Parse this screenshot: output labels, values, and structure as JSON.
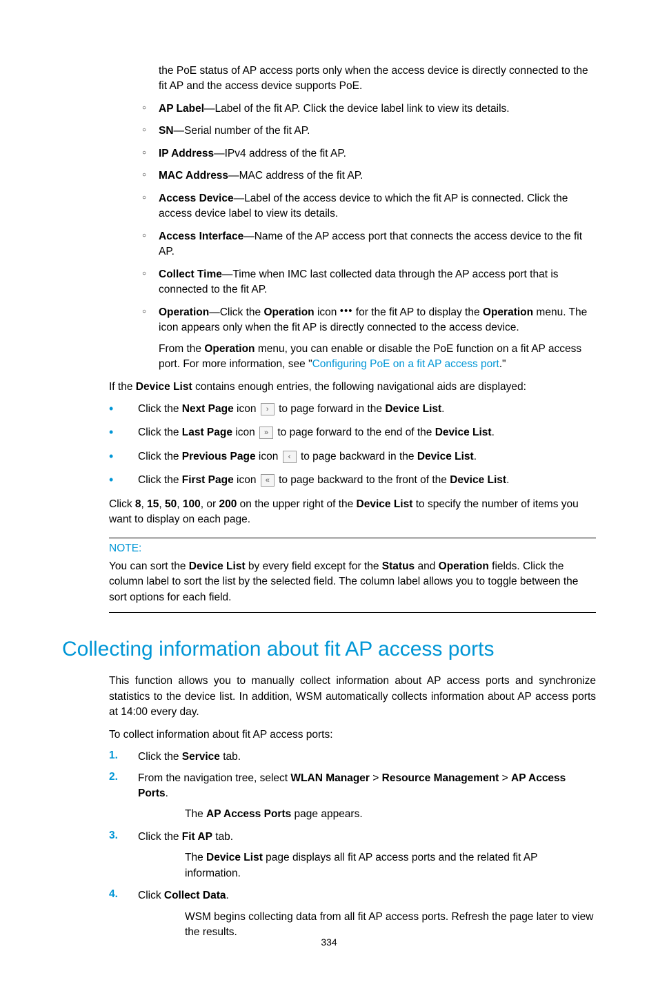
{
  "page_number": "334",
  "intro_continuation": "the PoE status of AP access ports only when the access device is directly connected to the fit AP and the access device supports PoE.",
  "sub_items": [
    {
      "term": "AP Label",
      "desc": "—Label of the fit AP. Click the device label link to view its details."
    },
    {
      "term": "SN",
      "desc": "—Serial number of the fit AP."
    },
    {
      "term": "IP Address",
      "desc": "—IPv4 address of the fit AP."
    },
    {
      "term": "MAC Address",
      "desc": "—MAC address of the fit AP."
    },
    {
      "term": "Access Device",
      "desc": "—Label of the access device to which the fit AP is connected. Click the access device label to view its details."
    },
    {
      "term": "Access Interface",
      "desc": "—Name of the AP access port that connects the access device to the fit AP."
    },
    {
      "term": "Collect Time",
      "desc": "—Time when IMC last collected data through the AP access port that is connected to the fit AP."
    }
  ],
  "operation": {
    "term": "Operation",
    "part1": "—Click the ",
    "icon_label": "Operation",
    "part2": " icon ",
    "part3": " for the fit AP to display the ",
    "menu_label": "Operation",
    "part4": " menu. The icon appears only when the fit AP is directly connected to the access device.",
    "para2_a": "From the ",
    "para2_b": " menu, you can enable or disable the PoE function on a fit AP access port. For more information, see \"",
    "link": "Configuring PoE on a fit AP access port",
    "para2_c": ".\""
  },
  "nav_intro_a": "If the ",
  "nav_intro_b": "Device List",
  "nav_intro_c": " contains enough entries, the following navigational aids are displayed:",
  "nav_items": [
    {
      "pre": "Click the ",
      "bold": "Next Page",
      "mid": " icon ",
      "glyph": "›",
      "post_a": " to page forward in the ",
      "target": "Device List",
      "post_b": "."
    },
    {
      "pre": "Click the ",
      "bold": "Last Page",
      "mid": " icon ",
      "glyph": "»",
      "post_a": " to page forward to the end of the ",
      "target": "Device List",
      "post_b": "."
    },
    {
      "pre": "Click the ",
      "bold": "Previous Page",
      "mid": " icon ",
      "glyph": "‹",
      "post_a": " to page backward in the ",
      "target": "Device List",
      "post_b": "."
    },
    {
      "pre": "Click the ",
      "bold": "First Page",
      "mid": " icon ",
      "glyph": "«",
      "post_a": " to page backward to the front of the ",
      "target": "Device List",
      "post_b": "."
    }
  ],
  "paging": {
    "a": "Click ",
    "n1": "8",
    "n2": "15",
    "n3": "50",
    "n4": "100",
    "n5": "200",
    "b": " on the upper right of the ",
    "target": "Device List",
    "c": " to specify the number of items you want to display on each page."
  },
  "note": {
    "title": "NOTE:",
    "a": "You can sort the ",
    "t1": "Device List",
    "b": " by every field except for the ",
    "t2": "Status",
    "c": " and ",
    "t3": "Operation",
    "d": " fields. Click the column label to sort the list by the selected field. The column label allows you to toggle between the sort options for each field."
  },
  "heading": "Collecting information about fit AP access ports",
  "body": {
    "p1": "This function allows you to manually collect information about AP access ports and synchronize statistics to the device list. In addition, WSM automatically collects information about AP access ports at 14:00 every day.",
    "p2": "To collect information about fit AP access ports:"
  },
  "steps": {
    "s1": {
      "n": "1.",
      "a": "Click the ",
      "b": "Service",
      "c": " tab."
    },
    "s2": {
      "n": "2.",
      "a": "From the navigation tree, select ",
      "p1": "WLAN Manager",
      "gt1": " > ",
      "p2": "Resource Management",
      "gt2": " > ",
      "p3": "AP Access Ports",
      "d": ".",
      "cont_a": "The ",
      "cont_b": "AP Access Ports",
      "cont_c": " page appears."
    },
    "s3": {
      "n": "3.",
      "a": "Click the ",
      "b": "Fit AP",
      "c": " tab.",
      "cont_a": "The ",
      "cont_b": "Device List",
      "cont_c": " page displays all fit AP access ports and the related fit AP information."
    },
    "s4": {
      "n": "4.",
      "a": "Click ",
      "b": "Collect Data",
      "c": ".",
      "cont": "WSM begins collecting data from all fit AP access ports. Refresh the page later to view the results."
    }
  },
  "colors": {
    "accent": "#0096d6",
    "text": "#000000",
    "bg": "#ffffff"
  }
}
